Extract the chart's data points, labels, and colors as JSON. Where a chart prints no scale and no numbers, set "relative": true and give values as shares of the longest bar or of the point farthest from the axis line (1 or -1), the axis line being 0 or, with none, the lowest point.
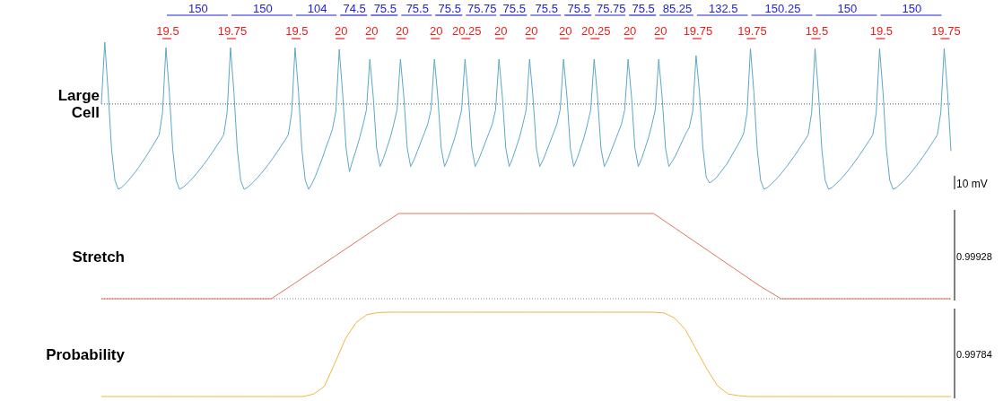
{
  "chart_data": [
    {
      "type": "line",
      "relative": true,
      "ylabel": "Large Cell",
      "categories": [
        null,
        null,
        null,
        null,
        null,
        null,
        null,
        null,
        null,
        null,
        null,
        null,
        null,
        null,
        null,
        null,
        null,
        null,
        null,
        null,
        null,
        null,
        null,
        null,
        null,
        null,
        null,
        null,
        null,
        null,
        null,
        null,
        null,
        null,
        null,
        null,
        null,
        null,
        null,
        null,
        null,
        null,
        null,
        null,
        null,
        null,
        null,
        null,
        null,
        null,
        null,
        null,
        null,
        null,
        null,
        null,
        null,
        null,
        null,
        null,
        null,
        null,
        null,
        null,
        null,
        null,
        null,
        null,
        null,
        null,
        null,
        null,
        null,
        null,
        null,
        null,
        null,
        null,
        null,
        null,
        null,
        null,
        null,
        null,
        null,
        null,
        null,
        null,
        null,
        null,
        null,
        null,
        null,
        null,
        null,
        null,
        null,
        null,
        null,
        null,
        null,
        null,
        null,
        null,
        null,
        null,
        null,
        null,
        null,
        null,
        null,
        null,
        null,
        null,
        null,
        null,
        null,
        null,
        null,
        null,
        null,
        null,
        null,
        null,
        null,
        null,
        null,
        null,
        null,
        null,
        null,
        null,
        null,
        null,
        null,
        null,
        null,
        null,
        null,
        null,
        null,
        null,
        null,
        null,
        null,
        null,
        null,
        null,
        null,
        null,
        null,
        null,
        null,
        null,
        null,
        null,
        null,
        null,
        null,
        null,
        null,
        null,
        null,
        null,
        null,
        null,
        null,
        null,
        null,
        null,
        null,
        null,
        null,
        null,
        null,
        null,
        null,
        null,
        null,
        null,
        null,
        null,
        null,
        null,
        null,
        null,
        null,
        null,
        null,
        null,
        null,
        null,
        null,
        null,
        null,
        null,
        null,
        null,
        null,
        null,
        null,
        null,
        null,
        null,
        null,
        null,
        null,
        null,
        null,
        null,
        null,
        null,
        null,
        null,
        null,
        null,
        null,
        null,
        null,
        null,
        null,
        null,
        null,
        null,
        null,
        null,
        null,
        null,
        null,
        null,
        null,
        null,
        null,
        null,
        null,
        null,
        null,
        null,
        null,
        null,
        null,
        null,
        null,
        null,
        null,
        null,
        null,
        null,
        null,
        null,
        null
      ],
      "series": [
        {
          "color": "#5ba8c8",
          "values": [
            0,
            0.724,
            0.138,
            -0.534,
            -0.897,
            -1,
            -0.976,
            -0.938,
            -0.895,
            -0.847,
            -0.797,
            -0.741,
            -0.683,
            -0.624,
            -0.56,
            -0.497,
            -0.431,
            -0.362,
            -0.103,
            0.66,
            0.138,
            -0.534,
            -0.897,
            -1,
            -0.978,
            -0.943,
            -0.905,
            -0.862,
            -0.816,
            -0.767,
            -0.716,
            -0.662,
            -0.605,
            -0.547,
            -0.486,
            -0.426,
            -0.362,
            -0.103,
            0.66,
            0.138,
            -0.534,
            -0.897,
            -1,
            -0.978,
            -0.943,
            -0.905,
            -0.862,
            -0.816,
            -0.767,
            -0.716,
            -0.662,
            -0.605,
            -0.547,
            -0.486,
            -0.426,
            -0.362,
            -0.103,
            0.66,
            0.138,
            -0.534,
            -0.897,
            -1,
            -0.931,
            -0.845,
            -0.741,
            -0.638,
            -0.517,
            -0.414,
            -0.293,
            -0.086,
            0.64,
            0.121,
            -0.517,
            -0.793,
            -0.655,
            -0.534,
            -0.397,
            -0.241,
            -0.069,
            0.524,
            0.086,
            -0.517,
            -0.733,
            -0.638,
            -0.517,
            -0.397,
            -0.241,
            -0.069,
            0.524,
            0.086,
            -0.517,
            -0.733,
            -0.655,
            -0.552,
            -0.448,
            -0.345,
            -0.241,
            -0.069,
            0.524,
            0.086,
            -0.517,
            -0.733,
            -0.638,
            -0.517,
            -0.397,
            -0.241,
            -0.069,
            0.524,
            0.086,
            -0.517,
            -0.733,
            -0.655,
            -0.552,
            -0.448,
            -0.345,
            -0.241,
            -0.069,
            0.524,
            0.086,
            -0.517,
            -0.733,
            -0.638,
            -0.517,
            -0.397,
            -0.241,
            -0.069,
            0.524,
            0.086,
            -0.517,
            -0.733,
            -0.655,
            -0.552,
            -0.448,
            -0.345,
            -0.241,
            -0.069,
            0.524,
            0.086,
            -0.517,
            -0.733,
            -0.638,
            -0.517,
            -0.397,
            -0.241,
            -0.069,
            0.524,
            0.086,
            -0.517,
            -0.733,
            -0.655,
            -0.552,
            -0.448,
            -0.345,
            -0.241,
            -0.069,
            0.524,
            0.086,
            -0.517,
            -0.733,
            -0.638,
            -0.517,
            -0.397,
            -0.241,
            -0.069,
            0.524,
            0.086,
            -0.517,
            -0.733,
            -0.672,
            -0.603,
            -0.517,
            -0.431,
            -0.345,
            -0.276,
            -0.086,
            0.567,
            0.138,
            -0.517,
            -0.862,
            -0.926,
            -0.897,
            -0.862,
            -0.81,
            -0.759,
            -0.707,
            -0.638,
            -0.569,
            -0.5,
            -0.431,
            -0.345,
            -0.103,
            0.65,
            0.138,
            -0.534,
            -0.897,
            -1,
            -0.978,
            -0.943,
            -0.905,
            -0.862,
            -0.816,
            -0.767,
            -0.716,
            -0.662,
            -0.605,
            -0.547,
            -0.486,
            -0.426,
            -0.362,
            -0.103,
            0.65,
            0.138,
            -0.534,
            -0.897,
            -1,
            -0.978,
            -0.943,
            -0.905,
            -0.862,
            -0.816,
            -0.767,
            -0.716,
            -0.662,
            -0.605,
            -0.547,
            -0.486,
            -0.426,
            -0.362,
            -0.103,
            0.65,
            0.138,
            -0.534,
            -0.897,
            -1,
            -0.978,
            -0.943,
            -0.905,
            -0.862,
            -0.816,
            -0.767,
            -0.716,
            -0.662,
            -0.605,
            -0.547,
            -0.486,
            -0.426,
            -0.362,
            -0.103,
            0.65,
            0.138,
            -0.552
          ]
        }
      ],
      "ref_lines": [
        {
          "axis": "y",
          "value": 0,
          "line_style": "dotted",
          "color": "#555555"
        }
      ],
      "annotations": [
        "19.5",
        "150",
        "19.75",
        "150",
        "19.5",
        "104",
        "20",
        "74.5",
        "20",
        "75.5",
        "20",
        "75.5",
        "20",
        "75.5",
        "20.25",
        "75.75",
        "20",
        "75.5",
        "20",
        "75.5",
        "20",
        "75.5",
        "20.25",
        "75.75",
        "20",
        "75.5",
        "20",
        "85.25",
        "19.75",
        "132.5",
        "19.75",
        "150.25",
        "19.5",
        "150",
        "19.5",
        "150",
        "19.75",
        "10 mV"
      ]
    },
    {
      "type": "line",
      "relative": true,
      "ylabel": "Stretch",
      "categories": [
        null,
        null,
        null,
        null,
        null,
        null,
        null,
        null,
        null,
        null,
        null,
        null,
        null,
        null,
        null,
        null,
        null,
        null,
        null,
        null,
        null,
        null,
        null,
        null,
        null,
        null,
        null,
        null,
        null,
        null,
        null,
        null,
        null,
        null,
        null,
        null,
        null,
        null,
        null,
        null,
        null
      ],
      "series": [
        {
          "color": "#e0755a",
          "values": [
            0,
            0,
            0,
            0,
            0,
            0,
            0,
            0,
            0,
            0.164,
            0.332,
            0.5,
            0.668,
            0.836,
            1,
            1,
            1,
            1,
            1,
            1,
            1,
            1,
            1,
            1,
            1,
            1,
            1,
            0.83,
            0.66,
            0.49,
            0.32,
            0.15,
            0,
            0,
            0,
            0,
            0,
            0,
            0,
            0,
            0
          ]
        }
      ],
      "ref_lines": [
        {
          "axis": "y",
          "value": 0,
          "line_style": "dotted",
          "color": "#888888"
        }
      ],
      "annotations": [
        "0.99928"
      ]
    },
    {
      "type": "line",
      "relative": true,
      "ylabel": "Probability",
      "categories": [
        null,
        null,
        null,
        null,
        null,
        null,
        null,
        null,
        null,
        null,
        null,
        null,
        null,
        null,
        null,
        null,
        null,
        null,
        null,
        null,
        null,
        null,
        null,
        null,
        null,
        null,
        null,
        null,
        null,
        null,
        null,
        null,
        null,
        null,
        null,
        null,
        null,
        null,
        null,
        null,
        null,
        null,
        null,
        null,
        null,
        null,
        null,
        null,
        null,
        null,
        null,
        null,
        null,
        null,
        null,
        null,
        null,
        null,
        null,
        null,
        null,
        null,
        null,
        null,
        null,
        null,
        null,
        null,
        null,
        null,
        null,
        null,
        null,
        null,
        null,
        null,
        null,
        null,
        null,
        null,
        null
      ],
      "series": [
        {
          "color": "#f2b640",
          "values": [
            0,
            0,
            0,
            0,
            0,
            0,
            0,
            0,
            0,
            0,
            0,
            0,
            0,
            0,
            0,
            0,
            0,
            0,
            0,
            0,
            0.03,
            0.12,
            0.4,
            0.69,
            0.88,
            0.97,
            0.995,
            1,
            1,
            1,
            1,
            1,
            1,
            1,
            1,
            1,
            1,
            1,
            1,
            1,
            1,
            1,
            1,
            1,
            1,
            1,
            1,
            1,
            1,
            1,
            1,
            1,
            1,
            0.99,
            0.93,
            0.79,
            0.56,
            0.33,
            0.13,
            0.03,
            0.01,
            0,
            0,
            0,
            0,
            0,
            0,
            0,
            0,
            0,
            0,
            0,
            0,
            0,
            0,
            0,
            0,
            0,
            0,
            0,
            0
          ]
        }
      ],
      "annotations": [
        "0.99784"
      ]
    }
  ]
}
